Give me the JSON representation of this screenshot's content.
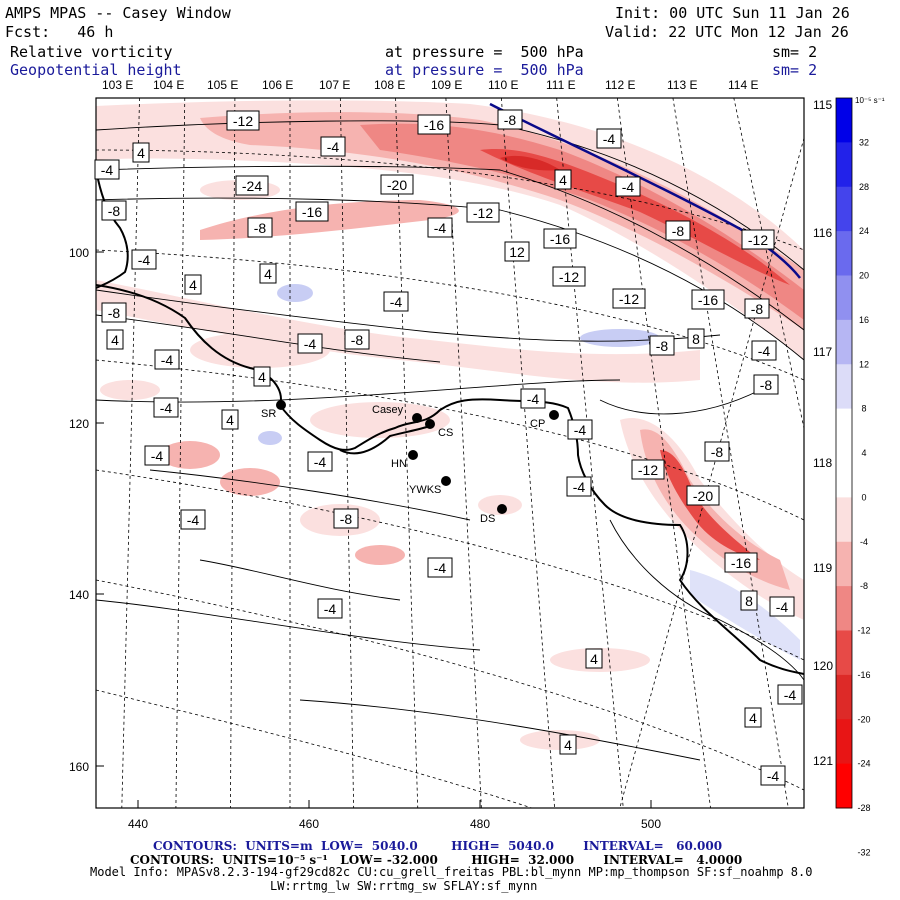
{
  "header": {
    "title": "AMPS MPAS -- Casey Window",
    "init": "Init: 00 UTC Sun 11 Jan 26",
    "fcst": "Fcst:   46 h",
    "valid": "Valid: 22 UTC Mon 12 Jan 26",
    "field1": {
      "name": "Relative vorticity",
      "pressure": "at pressure =  500 hPa",
      "sm": "sm= 2"
    },
    "field2": {
      "name": "Geopotential height",
      "pressure": "at pressure =  500 hPa",
      "sm": "sm= 2"
    }
  },
  "colors": {
    "accent_blue": "#1a1a9a",
    "coast": "#000000",
    "height_line": "#0a0a8a"
  },
  "lon_labels": [
    "103 E",
    "104 E",
    "105 E",
    "106 E",
    "107 E",
    "108 E",
    "109 E",
    "110 E",
    "111 E",
    "112 E",
    "113 E",
    "114 E"
  ],
  "lon_labels_right": [
    "115 E",
    "116 E",
    "117 E",
    "118 E",
    "119 E",
    "120 E",
    "121 E"
  ],
  "x_ticks": [
    "440",
    "460",
    "480",
    "500"
  ],
  "y_ticks": [
    "100",
    "120",
    "140",
    "160"
  ],
  "colorbar": {
    "unit": "10⁻⁵ s⁻¹",
    "labels": [
      "32",
      "28",
      "24",
      "20",
      "16",
      "12",
      "8",
      "4",
      "0",
      "-4",
      "-8",
      "-12",
      "-16",
      "-20",
      "-24",
      "-28",
      "-32"
    ]
  },
  "stations": [
    {
      "name": "SR"
    },
    {
      "name": "Casey"
    },
    {
      "name": "CS"
    },
    {
      "name": "CP"
    },
    {
      "name": "HN"
    },
    {
      "name": "YWKS"
    },
    {
      "name": "DS"
    }
  ],
  "contour_labels": [
    "-12",
    "-16",
    "-8",
    "-4",
    "4",
    "-4",
    "-4",
    "4",
    "-4",
    "-24",
    "-20",
    "-8",
    "-16",
    "-12",
    "-8",
    "-4",
    "-8",
    "-12",
    "-16",
    "12",
    "-4",
    "4",
    "4",
    "-4",
    "-12",
    "-12",
    "-16",
    "-8",
    "-8",
    "-4",
    "-8",
    "8",
    "-8",
    "-4",
    "-4",
    "4",
    "-8",
    "-4",
    "-4",
    "-4",
    "-4",
    "-12",
    "-8",
    "-20",
    "-4",
    "-8",
    "-16",
    "8",
    "-4",
    "-4",
    "-4",
    "-4",
    "4",
    "4",
    "-4",
    "-4",
    "4",
    "4",
    "4",
    "-4"
  ],
  "footer": {
    "line1": "CONTOURS:  UNITS=m  LOW=  5040.0        HIGH=  5040.0       INTERVAL=   60.000",
    "line2": "CONTOURS:  UNITS=10⁻⁵ s⁻¹   LOW= -32.000        HIGH=  32.000       INTERVAL=   4.0000",
    "line3": "Model Info: MPASv8.2.3-194-gf29cd82c CU:cu_grell_freitas PBL:bl_mynn MP:mp_thompson SF:sf_noahmp 8.0",
    "line4": "LW:rrtmg_lw SW:rrtmg_sw SFLAY:sf_mynn"
  }
}
